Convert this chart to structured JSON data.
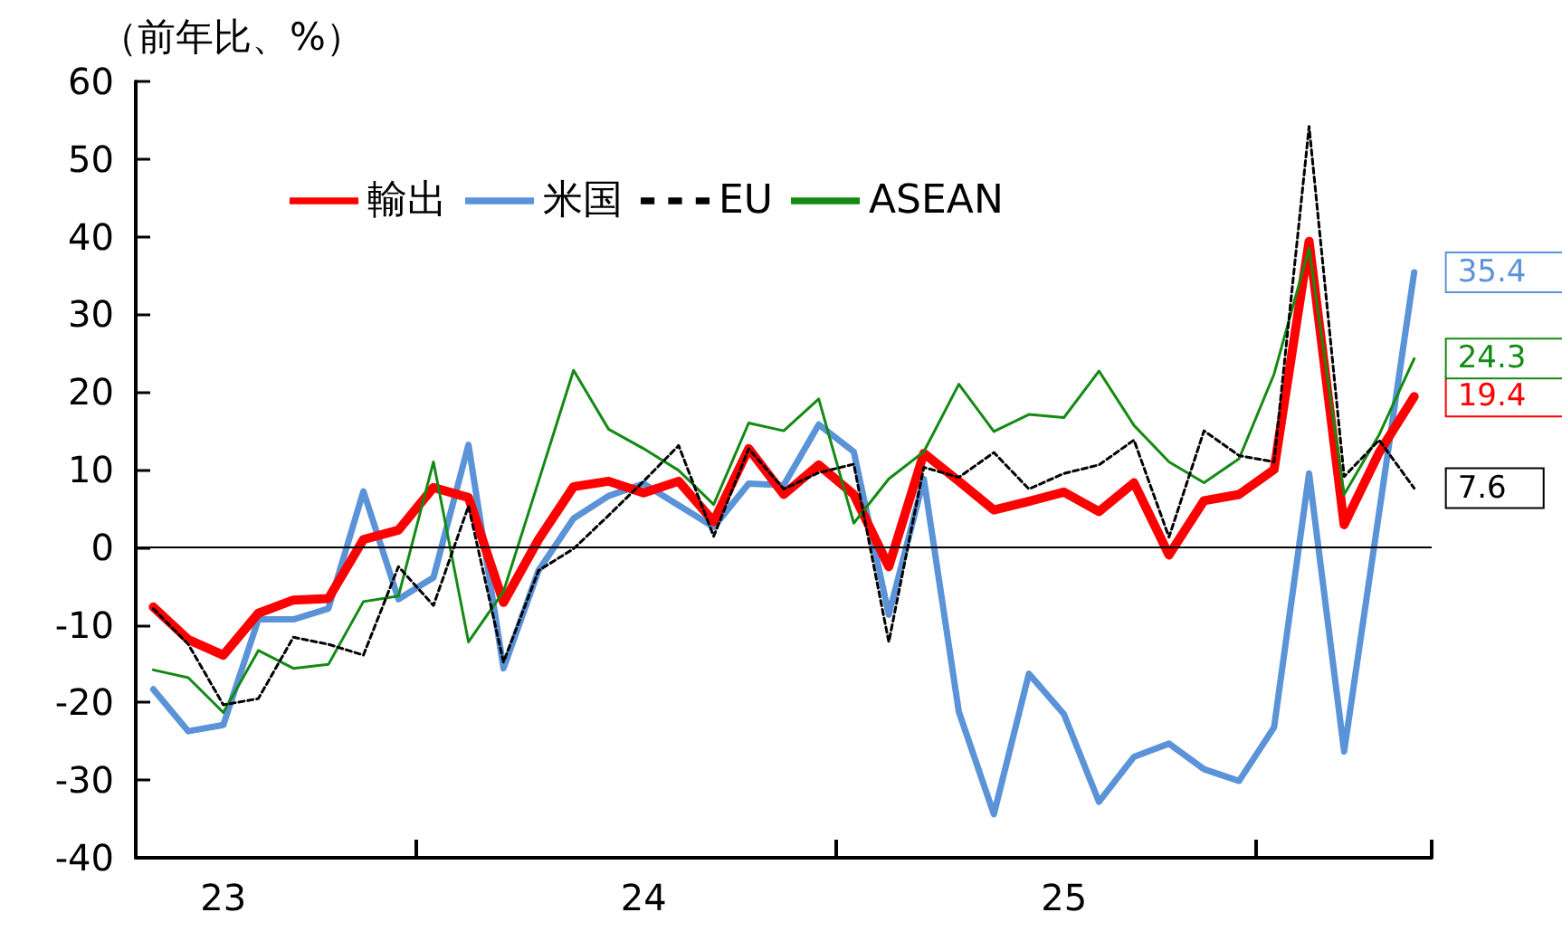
{
  "chart_data": {
    "type": "line",
    "ylabel": "（前年比、%）",
    "categories": [
      null,
      null,
      "23",
      null,
      null,
      null,
      null,
      null,
      null,
      null,
      null,
      null,
      null,
      null,
      "24",
      null,
      null,
      null,
      null,
      null,
      null,
      null,
      null,
      null,
      null,
      null,
      "25",
      null,
      null,
      null,
      null,
      null,
      null,
      null,
      null,
      null,
      null
    ],
    "series": [
      {
        "name": "輸出",
        "color": "#ff0000",
        "line_style": "solid",
        "values": [
          -7.7,
          -11.9,
          -13.9,
          -8.5,
          -6.8,
          -6.6,
          1.0,
          2.2,
          7.7,
          6.4,
          -7.1,
          1.0,
          7.8,
          8.5,
          7.0,
          8.5,
          3.3,
          12.7,
          6.8,
          10.6,
          6.8,
          -2.5,
          12.1,
          8.5,
          4.8,
          5.9,
          7.1,
          4.6,
          8.3,
          -1.0,
          6.0,
          6.8,
          10.0,
          39.4,
          2.9,
          12.2,
          19.4
        ],
        "value_labels": [
          null,
          null,
          null,
          null,
          null,
          null,
          null,
          null,
          null,
          null,
          null,
          null,
          null,
          null,
          null,
          null,
          null,
          null,
          null,
          null,
          null,
          null,
          null,
          null,
          null,
          null,
          null,
          null,
          null,
          null,
          null,
          null,
          null,
          null,
          null,
          null,
          "19.4"
        ]
      },
      {
        "name": "米国",
        "color": "#5b93d8",
        "line_style": "solid",
        "values": [
          -18.3,
          -23.7,
          -22.9,
          -9.3,
          -9.3,
          -7.9,
          7.2,
          -6.7,
          -3.9,
          13.2,
          -15.6,
          -3.0,
          3.7,
          6.6,
          8.2,
          5.4,
          2.6,
          8.2,
          8.0,
          15.8,
          12.3,
          -8.7,
          8.8,
          -21.2,
          -34.4,
          -16.3,
          -21.5,
          -32.8,
          -27.0,
          -25.3,
          -28.6,
          -30.1,
          -23.2,
          9.5,
          -26.3,
          4.5,
          35.4
        ],
        "value_labels": [
          null,
          null,
          null,
          null,
          null,
          null,
          null,
          null,
          null,
          null,
          null,
          null,
          null,
          null,
          null,
          null,
          null,
          null,
          null,
          null,
          null,
          null,
          null,
          null,
          null,
          null,
          null,
          null,
          null,
          null,
          null,
          null,
          null,
          null,
          null,
          null,
          "35.4"
        ]
      },
      {
        "name": "EU",
        "color": "#000000",
        "line_style": "dashed",
        "values": [
          -7.9,
          -12.5,
          -20.3,
          -19.5,
          -11.6,
          -12.5,
          -13.9,
          -2.5,
          -7.5,
          5.3,
          -14.8,
          -3.0,
          -0.2,
          4.1,
          8.5,
          13.1,
          1.4,
          12.7,
          7.5,
          9.6,
          10.7,
          -12.2,
          10.3,
          9.0,
          12.2,
          7.5,
          9.5,
          10.6,
          13.8,
          1.3,
          15.0,
          11.8,
          11.0,
          54.2,
          9.1,
          13.8,
          7.6
        ],
        "value_labels": [
          null,
          null,
          null,
          null,
          null,
          null,
          null,
          null,
          null,
          null,
          null,
          null,
          null,
          null,
          null,
          null,
          null,
          null,
          null,
          null,
          null,
          null,
          null,
          null,
          null,
          null,
          null,
          null,
          null,
          null,
          null,
          null,
          null,
          null,
          null,
          null,
          "7.6"
        ]
      },
      {
        "name": "ASEAN",
        "color": "#138a13",
        "line_style": "solid",
        "values": [
          -15.8,
          -16.8,
          -21.3,
          -13.3,
          -15.6,
          -15.1,
          -7.0,
          -6.3,
          11.0,
          -12.2,
          -5.7,
          8.5,
          22.8,
          15.2,
          12.7,
          9.9,
          5.5,
          16.0,
          15.0,
          19.1,
          3.1,
          8.8,
          12.3,
          21.0,
          14.9,
          17.1,
          16.7,
          22.7,
          15.7,
          11.0,
          8.3,
          11.4,
          22.3,
          38.5,
          6.8,
          14.5,
          24.3
        ],
        "value_labels": [
          null,
          null,
          null,
          null,
          null,
          null,
          null,
          null,
          null,
          null,
          null,
          null,
          null,
          null,
          null,
          null,
          null,
          null,
          null,
          null,
          null,
          null,
          null,
          null,
          null,
          null,
          null,
          null,
          null,
          null,
          null,
          null,
          null,
          null,
          null,
          null,
          "24.3"
        ]
      }
    ],
    "ylim": [
      -40,
      60
    ],
    "yticks": [
      -40,
      -30,
      -20,
      -10,
      0,
      10,
      20,
      30,
      40,
      50,
      60
    ],
    "ref_lines": [
      {
        "axis": "y",
        "value": 0,
        "color": "#000000"
      }
    ],
    "grid": false,
    "legend": "top left",
    "marker": "none"
  }
}
